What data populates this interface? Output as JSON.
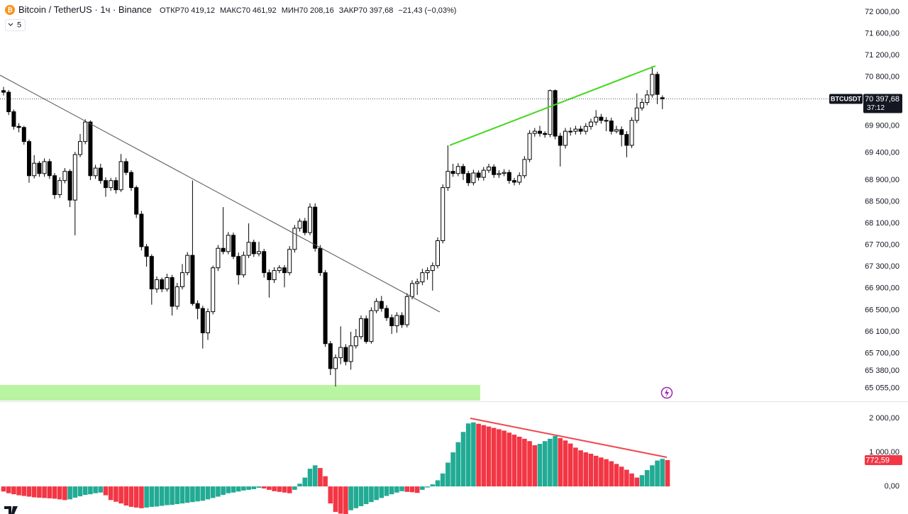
{
  "header": {
    "symbol": "Bitcoin / TetherUS · 1ч · Binance",
    "ohlc": [
      {
        "label": "ОТКР",
        "value": "70 419,12"
      },
      {
        "label": "МАКС",
        "value": "70 461,92"
      },
      {
        "label": "МИН",
        "value": "70 208,16"
      },
      {
        "label": "ЗАКР",
        "value": "70 397,68"
      }
    ],
    "change": "−21,43 (−0,03%)",
    "indicator_count": "5"
  },
  "chart_data": [
    {
      "type": "candlestick",
      "up_color": "#ffffff",
      "down_color": "#000000",
      "ylim": [
        64830,
        72222
      ],
      "grid": false,
      "yticks": [
        {
          "value": 72000,
          "label": "72 000,00"
        },
        {
          "value": 71600,
          "label": "71 600,00"
        },
        {
          "value": 71200,
          "label": "71 200,00"
        },
        {
          "value": 70800,
          "label": "70 800,00"
        },
        {
          "value": 69900,
          "label": "69 900,00"
        },
        {
          "value": 69400,
          "label": "69 400,00"
        },
        {
          "value": 68900,
          "label": "68 900,00"
        },
        {
          "value": 68500,
          "label": "68 500,00"
        },
        {
          "value": 68100,
          "label": "68 100,00"
        },
        {
          "value": 67700,
          "label": "67 700,00"
        },
        {
          "value": 67300,
          "label": "67 300,00"
        },
        {
          "value": 66900,
          "label": "66 900,00"
        },
        {
          "value": 66500,
          "label": "66 500,00"
        },
        {
          "value": 66100,
          "label": "66 100,00"
        },
        {
          "value": 65700,
          "label": "65 700,00"
        },
        {
          "value": 65380,
          "label": "65 380,00"
        },
        {
          "value": 65055,
          "label": "65 055,00"
        }
      ],
      "price_tag": {
        "symbol": "BTCUSDT",
        "value": 70397.68,
        "label": "70 397,68",
        "countdown": "37:12"
      },
      "candles": [
        [
          70550,
          70620,
          70460,
          70520
        ],
        [
          70520,
          70560,
          70100,
          70160
        ],
        [
          70160,
          70200,
          69830,
          69890
        ],
        [
          69890,
          69950,
          69780,
          69870
        ],
        [
          69870,
          69900,
          69550,
          69610
        ],
        [
          69610,
          69650,
          68850,
          68980
        ],
        [
          68980,
          69360,
          68930,
          69210
        ],
        [
          69210,
          69250,
          68960,
          69020
        ],
        [
          69020,
          69300,
          68960,
          69240
        ],
        [
          69240,
          69290,
          68920,
          68980
        ],
        [
          68980,
          69030,
          68550,
          68630
        ],
        [
          68630,
          68950,
          68570,
          68890
        ],
        [
          68890,
          69120,
          68840,
          69060
        ],
        [
          69060,
          69100,
          68400,
          68530
        ],
        [
          68530,
          69420,
          67880,
          69370
        ],
        [
          69370,
          69750,
          69320,
          69610
        ],
        [
          69610,
          70020,
          69560,
          69970
        ],
        [
          69970,
          70000,
          68900,
          68980
        ],
        [
          68980,
          69180,
          68920,
          69120
        ],
        [
          69120,
          69200,
          68830,
          68890
        ],
        [
          68890,
          68950,
          68590,
          68760
        ],
        [
          68760,
          68940,
          68700,
          68890
        ],
        [
          68890,
          68950,
          68650,
          68720
        ],
        [
          68720,
          69380,
          68680,
          69240
        ],
        [
          69240,
          69300,
          68990,
          69040
        ],
        [
          69040,
          69080,
          68700,
          68760
        ],
        [
          68760,
          68800,
          68200,
          68270
        ],
        [
          68270,
          68330,
          67600,
          67670
        ],
        [
          67670,
          67720,
          67300,
          67490
        ],
        [
          67490,
          67530,
          66600,
          66890
        ],
        [
          66890,
          67120,
          66820,
          67060
        ],
        [
          67060,
          67100,
          66830,
          66890
        ],
        [
          66890,
          67170,
          66840,
          67100
        ],
        [
          67100,
          67150,
          66400,
          66570
        ],
        [
          66570,
          67000,
          66510,
          66930
        ],
        [
          66930,
          67350,
          66880,
          67190
        ],
        [
          67190,
          67570,
          67140,
          67510
        ],
        [
          67510,
          68890,
          66580,
          66620
        ],
        [
          66620,
          66680,
          66330,
          66530
        ],
        [
          66530,
          66580,
          65790,
          66080
        ],
        [
          66080,
          66530,
          65950,
          66470
        ],
        [
          66470,
          67320,
          66420,
          67280
        ],
        [
          67280,
          67700,
          67220,
          67640
        ],
        [
          67640,
          68400,
          67530,
          67580
        ],
        [
          67580,
          67940,
          67530,
          67880
        ],
        [
          67880,
          67930,
          67440,
          67490
        ],
        [
          67490,
          67560,
          66970,
          67150
        ],
        [
          67150,
          67580,
          67100,
          67510
        ],
        [
          67510,
          68100,
          67460,
          67750
        ],
        [
          67750,
          67800,
          67480,
          67540
        ],
        [
          67540,
          67760,
          67490,
          67580
        ],
        [
          67580,
          67630,
          67100,
          67190
        ],
        [
          67190,
          67250,
          66730,
          67060
        ],
        [
          67060,
          67290,
          67000,
          67230
        ],
        [
          67230,
          67330,
          67180,
          67280
        ],
        [
          67280,
          67330,
          66920,
          67190
        ],
        [
          67190,
          67680,
          67140,
          67620
        ],
        [
          67620,
          68070,
          67560,
          68010
        ],
        [
          68010,
          68190,
          67950,
          68140
        ],
        [
          68140,
          68200,
          67880,
          67930
        ],
        [
          67930,
          68470,
          67880,
          68400
        ],
        [
          68400,
          68470,
          67580,
          67640
        ],
        [
          67640,
          67700,
          67130,
          67190
        ],
        [
          67190,
          67240,
          65820,
          65880
        ],
        [
          65880,
          65930,
          65300,
          65420
        ],
        [
          65420,
          65680,
          65090,
          65620
        ],
        [
          65620,
          66200,
          65500,
          65810
        ],
        [
          65810,
          65870,
          65480,
          65550
        ],
        [
          65550,
          66100,
          65400,
          65840
        ],
        [
          65840,
          66150,
          65790,
          66010
        ],
        [
          66010,
          66400,
          65960,
          66340
        ],
        [
          66340,
          66400,
          65880,
          65920
        ],
        [
          65920,
          66550,
          65880,
          66490
        ],
        [
          66490,
          66720,
          66440,
          66660
        ],
        [
          66660,
          66760,
          66470,
          66530
        ],
        [
          66530,
          66590,
          66300,
          66360
        ],
        [
          66360,
          66420,
          66060,
          66210
        ],
        [
          66210,
          66460,
          66080,
          66400
        ],
        [
          66400,
          66460,
          66170,
          66230
        ],
        [
          66230,
          66810,
          66180,
          66750
        ],
        [
          66750,
          67050,
          66700,
          66990
        ],
        [
          66990,
          67080,
          66780,
          67020
        ],
        [
          67020,
          67260,
          66960,
          67190
        ],
        [
          67190,
          67290,
          67060,
          67230
        ],
        [
          67230,
          67380,
          66860,
          67320
        ],
        [
          67320,
          67840,
          67270,
          67780
        ],
        [
          67780,
          68820,
          67730,
          68760
        ],
        [
          68760,
          69540,
          68700,
          69060
        ],
        [
          69060,
          69200,
          68960,
          69020
        ],
        [
          69020,
          69210,
          68970,
          69150
        ],
        [
          69150,
          69200,
          68900,
          69020
        ],
        [
          69020,
          69070,
          68790,
          68850
        ],
        [
          68850,
          69090,
          68800,
          69030
        ],
        [
          69030,
          69080,
          68890,
          68950
        ],
        [
          68950,
          69140,
          68890,
          69080
        ],
        [
          69080,
          69200,
          69030,
          69140
        ],
        [
          69140,
          69190,
          68940,
          69000
        ],
        [
          69000,
          69080,
          68940,
          69020
        ],
        [
          69020,
          69100,
          68970,
          69040
        ],
        [
          69040,
          69090,
          68830,
          68890
        ],
        [
          68890,
          68940,
          68800,
          68860
        ],
        [
          68860,
          69040,
          68810,
          68980
        ],
        [
          68980,
          69340,
          68930,
          69280
        ],
        [
          69280,
          69820,
          69230,
          69760
        ],
        [
          69760,
          69860,
          69700,
          69800
        ],
        [
          69800,
          69900,
          69700,
          69760
        ],
        [
          69760,
          69800,
          69680,
          69740
        ],
        [
          69740,
          70570,
          69690,
          70550
        ],
        [
          70550,
          70570,
          69650,
          69710
        ],
        [
          69710,
          69770,
          69150,
          69540
        ],
        [
          69540,
          69860,
          69480,
          69800
        ],
        [
          69800,
          69870,
          69720,
          69800
        ],
        [
          69800,
          69900,
          69740,
          69840
        ],
        [
          69840,
          69900,
          69740,
          69800
        ],
        [
          69800,
          69950,
          69740,
          69890
        ],
        [
          69890,
          70030,
          69830,
          69970
        ],
        [
          69970,
          70190,
          69910,
          70060
        ],
        [
          70060,
          70120,
          69940,
          70000
        ],
        [
          70000,
          70060,
          69800,
          69990
        ],
        [
          69990,
          70050,
          69740,
          69800
        ],
        [
          69800,
          69900,
          69760,
          69830
        ],
        [
          69830,
          69890,
          69520,
          69740
        ],
        [
          69740,
          69800,
          69320,
          69540
        ],
        [
          69540,
          70060,
          69490,
          70000
        ],
        [
          70000,
          70500,
          69950,
          70230
        ],
        [
          70230,
          70400,
          70180,
          70330
        ],
        [
          70330,
          70560,
          70280,
          70470
        ],
        [
          70470,
          71000,
          70420,
          70850
        ],
        [
          70850,
          70900,
          70300,
          70480
        ],
        [
          70419.12,
          70461.92,
          70208.16,
          70397.68
        ]
      ]
    },
    {
      "type": "bar",
      "up_color": "#22ab94",
      "down_color": "#f23645",
      "ylim": [
        -810,
        2480
      ],
      "grid": false,
      "yticks": [
        {
          "value": 2000,
          "label": "2 000,00"
        },
        {
          "value": 1000,
          "label": "1 000,00"
        },
        {
          "value": 0,
          "label": "0,00"
        }
      ],
      "last": {
        "value": 772.59,
        "label": "772,59"
      },
      "values": [
        -150,
        -200,
        -230,
        -260,
        -280,
        -300,
        -320,
        -330,
        -340,
        -350,
        -360,
        -380,
        -400,
        -380,
        -330,
        -290,
        -250,
        -230,
        -200,
        -180,
        -260,
        -400,
        -450,
        -500,
        -560,
        -600,
        -620,
        -640,
        -620,
        -600,
        -590,
        -570,
        -550,
        -540,
        -520,
        -500,
        -480,
        -460,
        -440,
        -420,
        -380,
        -340,
        -300,
        -250,
        -200,
        -180,
        -150,
        -120,
        -100,
        -80,
        -40,
        -60,
        -100,
        -140,
        -160,
        -180,
        -200,
        -100,
        80,
        260,
        520,
        620,
        540,
        300,
        -500,
        -750,
        -800,
        -820,
        -700,
        -640,
        -580,
        -520,
        -460,
        -400,
        -340,
        -280,
        -230,
        -180,
        -140,
        -160,
        -170,
        -190,
        -100,
        -30,
        60,
        180,
        380,
        700,
        1000,
        1300,
        1600,
        1850,
        1880,
        1840,
        1800,
        1760,
        1720,
        1680,
        1640,
        1580,
        1520,
        1460,
        1400,
        1330,
        1210,
        1250,
        1330,
        1400,
        1480,
        1420,
        1350,
        1260,
        1140,
        1060,
        1000,
        960,
        900,
        850,
        800,
        740,
        660,
        580,
        490,
        380,
        260,
        330,
        480,
        620,
        760,
        810,
        772.59
      ]
    }
  ]
}
